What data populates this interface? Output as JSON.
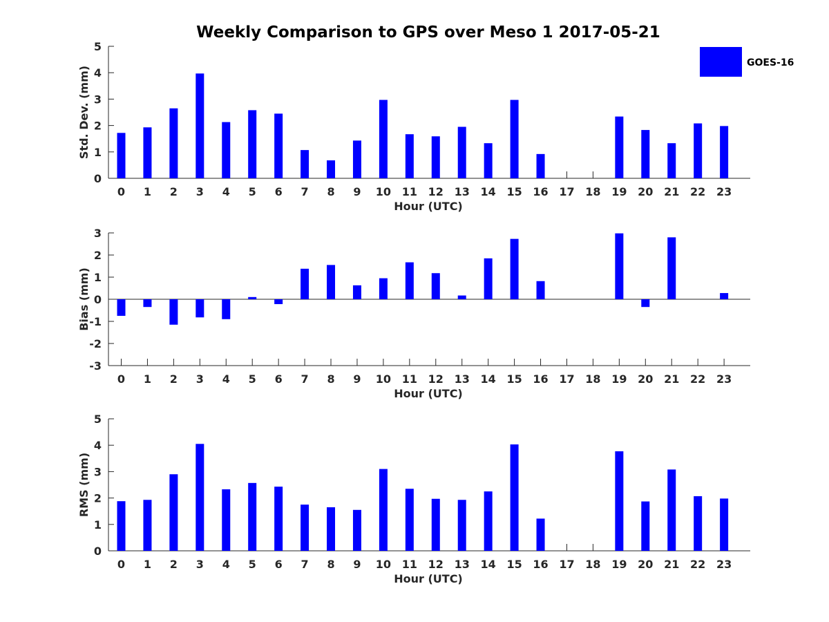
{
  "title": "Weekly Comparison to GPS over Meso 1 2017-05-21",
  "legend": {
    "label": "GOES-16",
    "color": "#0000ff",
    "placement": "top-right"
  },
  "chart_data": [
    {
      "type": "bar",
      "title": "Weekly Comparison to GPS over Meso 1 2017-05-21",
      "xlabel": "Hour (UTC)",
      "ylabel": "Std. Dev. (mm)",
      "ylim": [
        0,
        5
      ],
      "yticks": [
        "0",
        "1",
        "2",
        "3",
        "4",
        "5"
      ],
      "categories": [
        "0",
        "1",
        "2",
        "3",
        "4",
        "5",
        "6",
        "7",
        "8",
        "9",
        "10",
        "11",
        "12",
        "13",
        "14",
        "15",
        "16",
        "17",
        "18",
        "19",
        "20",
        "21",
        "22",
        "23"
      ],
      "series": [
        {
          "name": "GOES-16",
          "values": [
            1.72,
            1.93,
            2.65,
            3.97,
            2.13,
            2.58,
            2.45,
            1.07,
            0.68,
            1.43,
            2.97,
            1.67,
            1.59,
            1.95,
            1.33,
            2.97,
            0.92,
            null,
            null,
            2.34,
            1.83,
            1.33,
            2.08,
            1.98
          ]
        }
      ]
    },
    {
      "type": "bar",
      "xlabel": "Hour (UTC)",
      "ylabel": "Bias (mm)",
      "ylim": [
        -3,
        3
      ],
      "yticks": [
        "-3",
        "-2",
        "-1",
        "0",
        "1",
        "2",
        "3"
      ],
      "zero_line": true,
      "categories": [
        "0",
        "1",
        "2",
        "3",
        "4",
        "5",
        "6",
        "7",
        "8",
        "9",
        "10",
        "11",
        "12",
        "13",
        "14",
        "15",
        "16",
        "17",
        "18",
        "19",
        "20",
        "21",
        "22",
        "23"
      ],
      "series": [
        {
          "name": "GOES-16",
          "values": [
            -0.75,
            -0.35,
            -1.15,
            -0.82,
            -0.9,
            0.1,
            -0.22,
            1.38,
            1.55,
            0.63,
            0.95,
            1.67,
            1.18,
            0.17,
            1.85,
            2.73,
            0.82,
            null,
            null,
            2.98,
            -0.35,
            2.8,
            null,
            0.28
          ]
        }
      ]
    },
    {
      "type": "bar",
      "xlabel": "Hour (UTC)",
      "ylabel": "RMS (mm)",
      "ylim": [
        0,
        5
      ],
      "yticks": [
        "0",
        "1",
        "2",
        "3",
        "4",
        "5"
      ],
      "categories": [
        "0",
        "1",
        "2",
        "3",
        "4",
        "5",
        "6",
        "7",
        "8",
        "9",
        "10",
        "11",
        "12",
        "13",
        "14",
        "15",
        "16",
        "17",
        "18",
        "19",
        "20",
        "21",
        "22",
        "23"
      ],
      "series": [
        {
          "name": "GOES-16",
          "values": [
            1.88,
            1.93,
            2.9,
            4.05,
            2.33,
            2.57,
            2.43,
            1.75,
            1.65,
            1.55,
            3.1,
            2.35,
            1.97,
            1.93,
            2.25,
            4.03,
            1.22,
            null,
            null,
            3.77,
            1.87,
            3.08,
            2.07,
            1.98
          ]
        }
      ]
    }
  ]
}
